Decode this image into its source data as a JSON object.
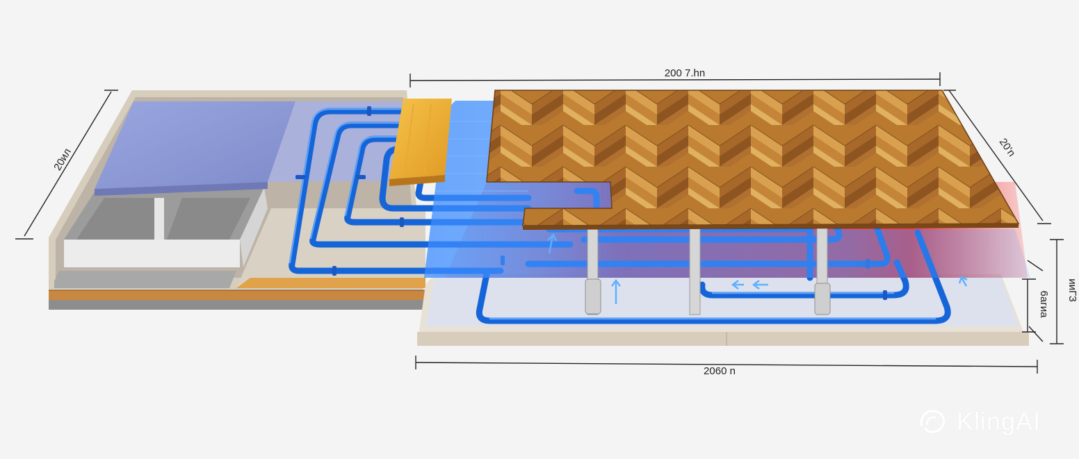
{
  "dimensions": {
    "top_width": "200 7.hn",
    "left_depth": "20ил",
    "right_depth": "20'n",
    "bottom_width": "2060 n",
    "layer_thickness": "6агиа",
    "total_height": "ииГЗ"
  },
  "watermark": {
    "text": "KlingAI"
  },
  "colors": {
    "pipe": "#1565d8",
    "heat": "#e82020",
    "insulation": "#8e9ad6",
    "wood": "#c98a3a",
    "screed": "#9a9a9a"
  },
  "icons": [
    "flow-arrow-icon",
    "kling-logo-icon"
  ]
}
